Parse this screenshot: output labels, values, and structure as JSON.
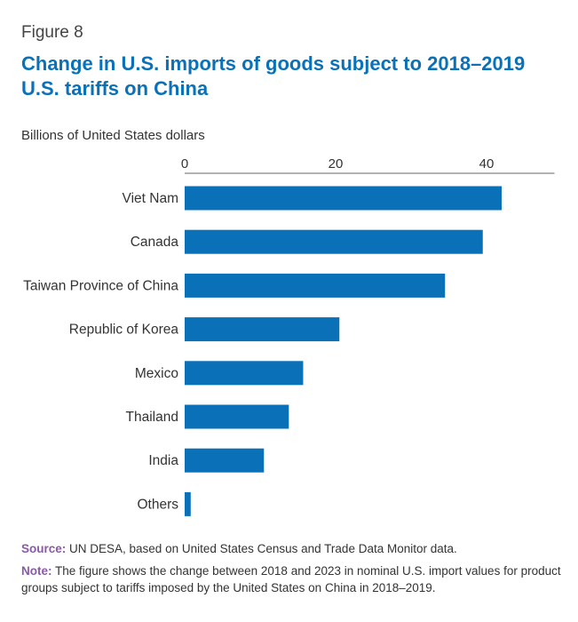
{
  "figure_label": "Figure 8",
  "units_label": "Billions of United States dollars",
  "colors": {
    "bar": "#0a71b9",
    "title": "#0a71b9",
    "note_label": "#8a5aa8",
    "axis": "#666666"
  },
  "source": {
    "label": "Source:",
    "text": " UN DESA, based on United States Census and Trade Data Monitor data."
  },
  "note": {
    "label": "Note:",
    "text": " The figure shows the change between 2018 and 2023 in nominal U.S. import values for product groups subject to tariffs imposed by the United States on China in 2018–2019."
  },
  "chart_data": {
    "type": "bar",
    "orientation": "horizontal",
    "title": "Change in U.S. imports of goods subject to 2018–2019 U.S. tariffs on China",
    "xlabel": "",
    "ylabel": "",
    "xlim": [
      0,
      49
    ],
    "ticks": [
      0,
      20,
      40
    ],
    "tick_labels": [
      "0",
      "20",
      "40"
    ],
    "axis_position": "top",
    "grid": false,
    "categories": [
      "Viet Nam",
      "Canada",
      "Taiwan Province of China",
      "Republic of Korea",
      "Mexico",
      "Thailand",
      "India",
      "Others"
    ],
    "values": [
      42.0,
      39.5,
      34.5,
      20.5,
      15.7,
      13.8,
      10.5,
      0.8
    ]
  }
}
